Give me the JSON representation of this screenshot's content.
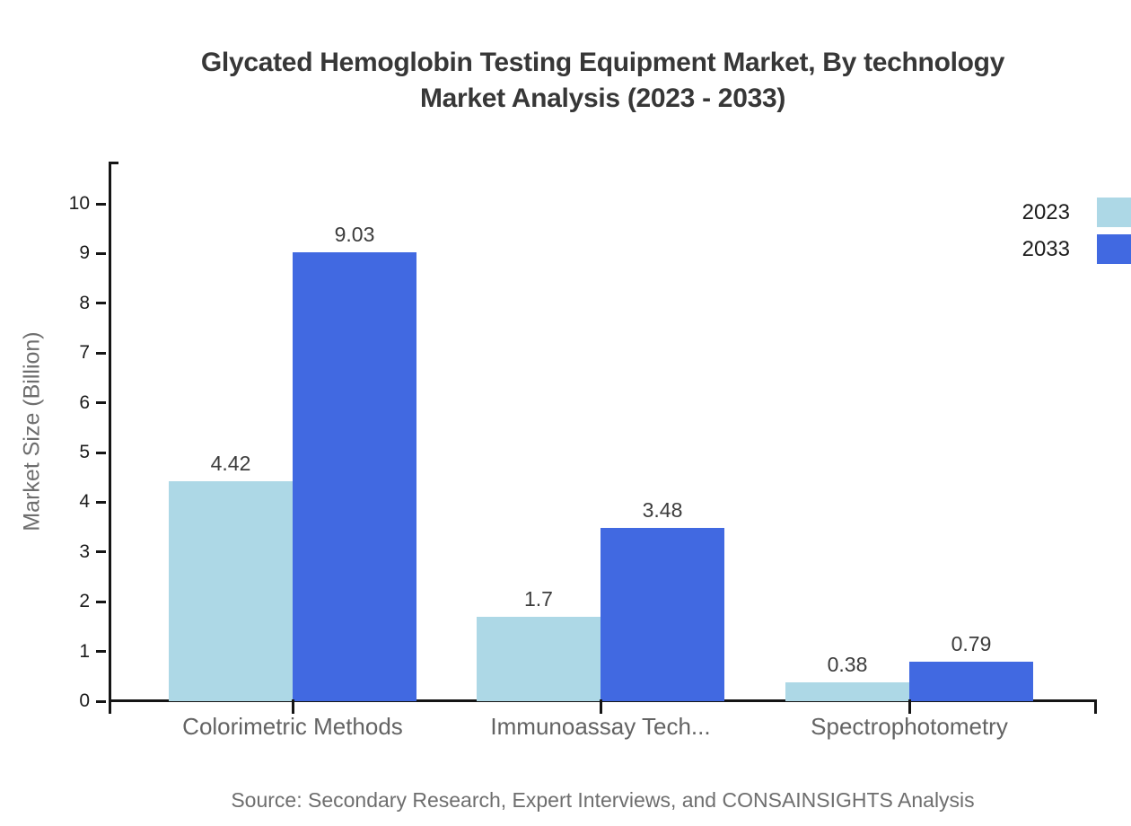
{
  "title": {
    "line1": "Glycated Hemoglobin Testing Equipment Market, By technology",
    "line2": "Market Analysis (2023 - 2033)"
  },
  "source": "Source: Secondary Research, Expert Interviews, and CONSAINSIGHTS Analysis",
  "colors": {
    "series_2023": "#ADD8E6",
    "series_2033": "#4169E1",
    "axis": "#151515",
    "background": "#FFFFFF"
  },
  "legend": {
    "position": "top-right",
    "items": [
      {
        "label": "2023",
        "color": "#ADD8E6"
      },
      {
        "label": "2033",
        "color": "#4169E1"
      }
    ]
  },
  "chart_data": {
    "type": "bar",
    "title": "Glycated Hemoglobin Testing Equipment Market, By technology Market Analysis (2023 - 2033)",
    "categories": [
      "Colorimetric Methods",
      "Immunoassay Tech...",
      "Spectrophotometry"
    ],
    "series": [
      {
        "name": "2023",
        "color": "#ADD8E6",
        "values": [
          4.42,
          1.7,
          0.38
        ]
      },
      {
        "name": "2033",
        "color": "#4169E1",
        "values": [
          9.03,
          3.48,
          0.79
        ]
      }
    ],
    "value_labels": {
      "2023": [
        "4.42",
        "1.7",
        "0.38"
      ],
      "2033": [
        "9.03",
        "3.48",
        "0.79"
      ]
    },
    "xlabel": "",
    "ylabel": "Market Size (Billion)",
    "ylim": [
      0,
      10
    ],
    "yticks": [
      0,
      1,
      2,
      3,
      4,
      5,
      6,
      7,
      8,
      9,
      10
    ],
    "grid": false,
    "legend_position": "top-right"
  }
}
